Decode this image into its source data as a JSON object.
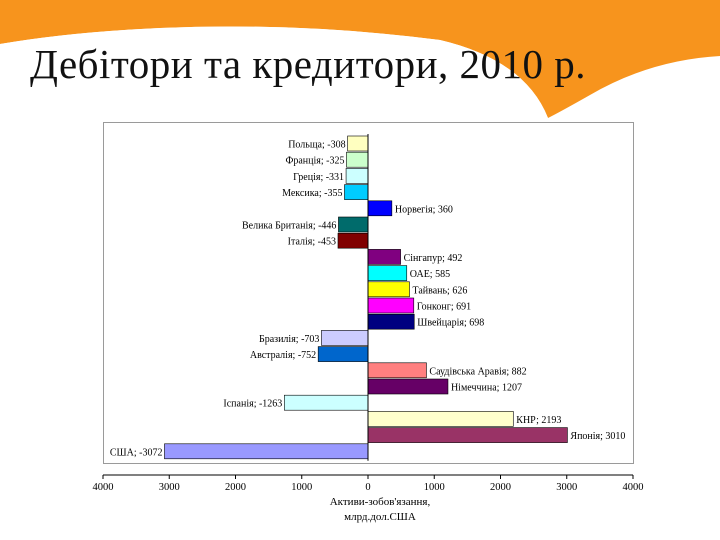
{
  "slide": {
    "title": "Дебітори та кредитори, 2010 р."
  },
  "colors": {
    "accent_orange": "#f7941d",
    "frame": "#9a9a9a",
    "axis": "#000000"
  },
  "chart_data": {
    "type": "bar",
    "orientation": "horizontal",
    "title": "",
    "xlabel_lines": [
      "Активи-зобов'язання,",
      "млрд.дол.США"
    ],
    "xlim": [
      -4000,
      4000
    ],
    "xticks": [
      -4000,
      -3000,
      -2000,
      -1000,
      0,
      1000,
      2000,
      3000,
      4000
    ],
    "xtick_labels": [
      "4000",
      "3000",
      "2000",
      "1000",
      "0",
      "1000",
      "2000",
      "3000",
      "4000"
    ],
    "grid": false,
    "legend": "none",
    "bars": [
      {
        "label": "Польща; -308",
        "value": -308,
        "color": "#ffffc0"
      },
      {
        "label": "Франція; -325",
        "value": -325,
        "color": "#ccffcc"
      },
      {
        "label": "Греція; -331",
        "value": -331,
        "color": "#ccffff"
      },
      {
        "label": "Мексика; -355",
        "value": -355,
        "color": "#00ccff"
      },
      {
        "label": "Норвегія; 360",
        "value": 360,
        "color": "#0000ff"
      },
      {
        "label": "Велика Британія; -446",
        "value": -446,
        "color": "#006b6b"
      },
      {
        "label": "Італія; -453",
        "value": -453,
        "color": "#800000"
      },
      {
        "label": "Сінгапур; 492",
        "value": 492,
        "color": "#800080"
      },
      {
        "label": "ОАЕ; 585",
        "value": 585,
        "color": "#00ffff"
      },
      {
        "label": "Тайвань; 626",
        "value": 626,
        "color": "#ffff00"
      },
      {
        "label": "Гонконг; 691",
        "value": 691,
        "color": "#ff00ff"
      },
      {
        "label": "Швейцарія; 698",
        "value": 698,
        "color": "#000080"
      },
      {
        "label": "Бразилія; -703",
        "value": -703,
        "color": "#ccccff"
      },
      {
        "label": "Австралія; -752",
        "value": -752,
        "color": "#0066cc"
      },
      {
        "label": "Саудівська Аравія; 882",
        "value": 882,
        "color": "#ff8080"
      },
      {
        "label": "Німеччина; 1207",
        "value": 1207,
        "color": "#660066"
      },
      {
        "label": "Іспанія; -1263",
        "value": -1263,
        "color": "#ccffff"
      },
      {
        "label": "КНР; 2193",
        "value": 2193,
        "color": "#ffffcc"
      },
      {
        "label": "Японія; 3010",
        "value": 3010,
        "color": "#993366"
      },
      {
        "label": "США; -3072",
        "value": -3072,
        "color": "#9999ff"
      }
    ]
  }
}
